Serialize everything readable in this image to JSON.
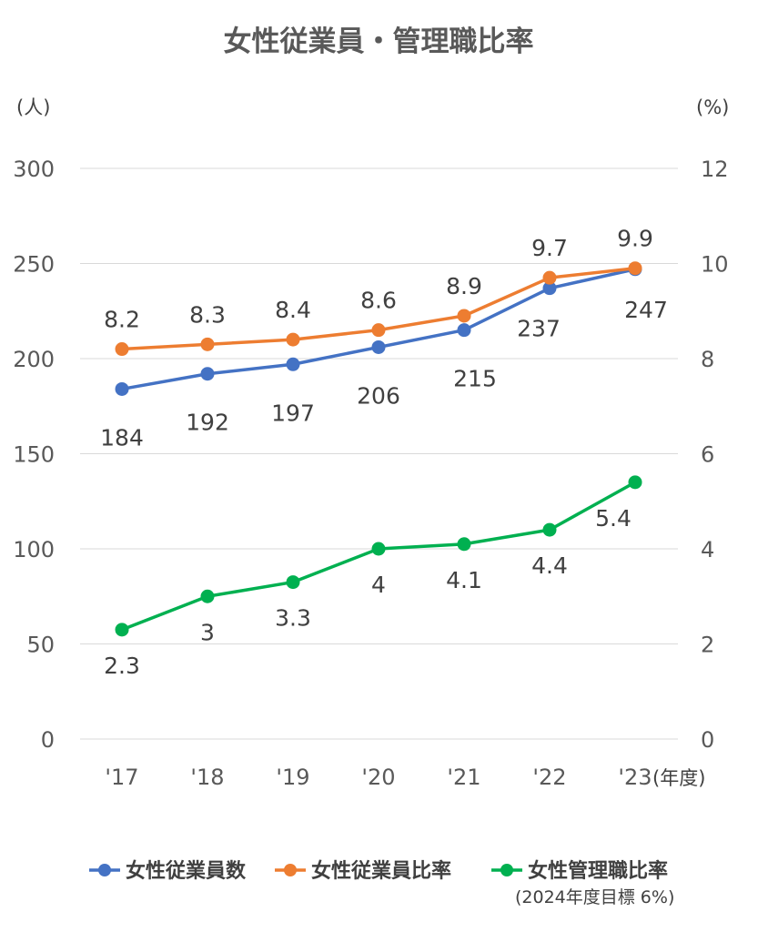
{
  "chart_data": {
    "type": "line",
    "title": "女性従業員・管理職比率",
    "categories": [
      "'17",
      "'18",
      "'19",
      "'20",
      "'21",
      "'22",
      "'23"
    ],
    "x_unit": "(年度)",
    "y_left": {
      "unit": "(人)",
      "range": [
        0,
        300
      ],
      "ticks": [
        0,
        50,
        100,
        150,
        200,
        250,
        300
      ]
    },
    "y_right": {
      "unit": "(%)",
      "range": [
        0,
        12
      ],
      "ticks": [
        0,
        2,
        4,
        6,
        8,
        10,
        12
      ]
    },
    "grid": true,
    "legend_position": "bottom",
    "series": [
      {
        "name": "女性従業員数",
        "axis": "left",
        "color": "#4472C4",
        "values": [
          184,
          192,
          197,
          206,
          215,
          237,
          247
        ],
        "labels": [
          "184",
          "192",
          "197",
          "206",
          "215",
          "237",
          "247"
        ]
      },
      {
        "name": "女性従業員比率",
        "axis": "right",
        "color": "#ED7D31",
        "values": [
          8.2,
          8.3,
          8.4,
          8.6,
          8.9,
          9.7,
          9.9
        ],
        "labels": [
          "8.2",
          "8.3",
          "8.4",
          "8.6",
          "8.9",
          "9.7",
          "9.9"
        ]
      },
      {
        "name": "女性管理職比率",
        "axis": "right",
        "color": "#00B050",
        "values": [
          2.3,
          3.0,
          3.3,
          4.0,
          4.1,
          4.4,
          5.4
        ],
        "labels": [
          "2.3",
          "3",
          "3.3",
          "4",
          "4.1",
          "4.4",
          "5.4"
        ]
      }
    ],
    "legend_note": "(2024年度目標 6%)"
  }
}
